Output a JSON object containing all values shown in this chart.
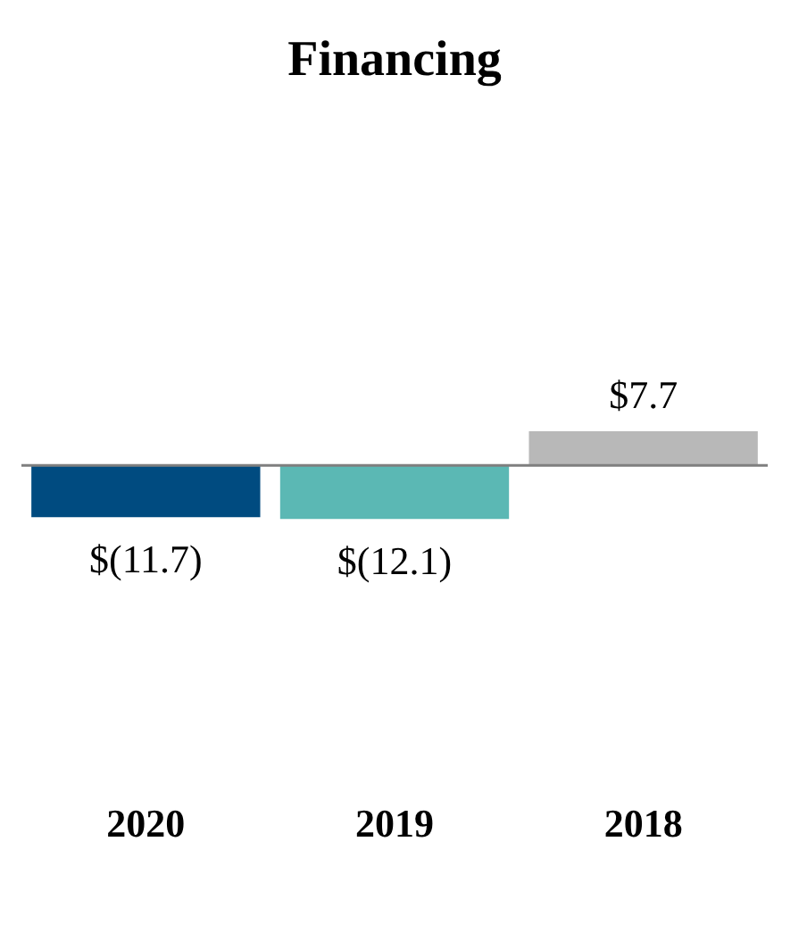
{
  "chart_data": {
    "type": "bar",
    "title": "Financing",
    "categories": [
      "2020",
      "2019",
      "2018"
    ],
    "values": [
      -11.7,
      -12.1,
      7.7
    ],
    "colors": [
      "#004b80",
      "#5bb8b4",
      "#b8b8b8"
    ],
    "value_labels": [
      "$(11.7)",
      "$(12.1)",
      "$7.7"
    ],
    "grid": false,
    "legend": false,
    "tick_labels": "x"
  }
}
